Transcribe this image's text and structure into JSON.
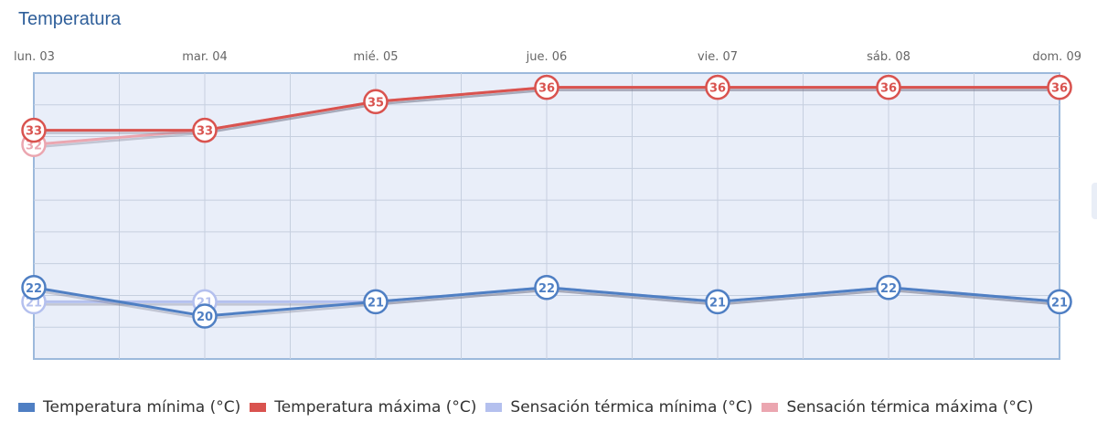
{
  "title": "Temperatura",
  "colors": {
    "min": "#4f7fc3",
    "max": "#d9534f",
    "feel_min": "#b4c0ee",
    "feel_max": "#eba6b0",
    "plot_bg": "#e9eef9",
    "grid": "#c6cfdf",
    "border": "#9cb9dc"
  },
  "chart_data": {
    "type": "line",
    "categories": [
      "lun. 03",
      "mar. 04",
      "mié. 05",
      "jue. 06",
      "vie. 07",
      "sáb. 08",
      "dom. 09"
    ],
    "ylim": [
      17,
      37
    ],
    "grid": true,
    "legend_position": "bottom",
    "series": [
      {
        "name": "Sensación térmica mínima (°C)",
        "key": "feel_min",
        "values": [
          21,
          21,
          21,
          22,
          21,
          22,
          21
        ]
      },
      {
        "name": "Sensación térmica máxima (°C)",
        "key": "feel_max",
        "values": [
          32,
          33,
          35,
          36,
          36,
          36,
          36
        ]
      },
      {
        "name": "Temperatura mínima (°C)",
        "key": "min",
        "values": [
          22,
          20,
          21,
          22,
          21,
          22,
          21
        ]
      },
      {
        "name": "Temperatura máxima (°C)",
        "key": "max",
        "values": [
          33,
          33,
          35,
          36,
          36,
          36,
          36
        ]
      }
    ]
  },
  "legend": [
    {
      "label": "Temperatura mínima (°C)",
      "key": "min"
    },
    {
      "label": "Temperatura máxima (°C)",
      "key": "max"
    },
    {
      "label": "Sensación térmica mínima (°C)",
      "key": "feel_min"
    },
    {
      "label": "Sensación térmica máxima (°C)",
      "key": "feel_max"
    }
  ]
}
